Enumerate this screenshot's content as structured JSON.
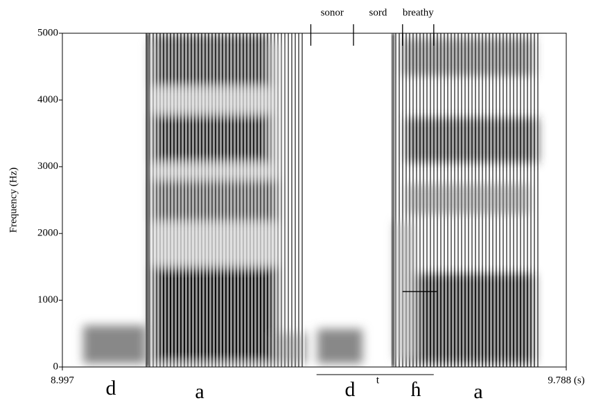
{
  "chart_data": {
    "type": "spectrogram",
    "y_label": "Frequency (Hz)",
    "xlim": [
      8.997,
      9.788
    ],
    "ylim": [
      0,
      5000
    ],
    "yticks": [
      0,
      1000,
      2000,
      3000,
      4000,
      5000
    ],
    "xticks": [
      8.997,
      {
        "value": 9.788,
        "label": "9.788 (s)"
      }
    ],
    "boundaries": [
      9.387,
      9.454,
      9.531,
      9.58
    ],
    "phase_labels": [
      "sonor",
      "sord",
      "breathy"
    ],
    "segments": [
      "d",
      "a",
      "d",
      "t",
      "ɦ",
      "a"
    ],
    "formant_marker": {
      "value": 1130,
      "x": [
        9.531,
        9.585
      ]
    },
    "underline_x": [
      9.396,
      9.58
    ]
  }
}
